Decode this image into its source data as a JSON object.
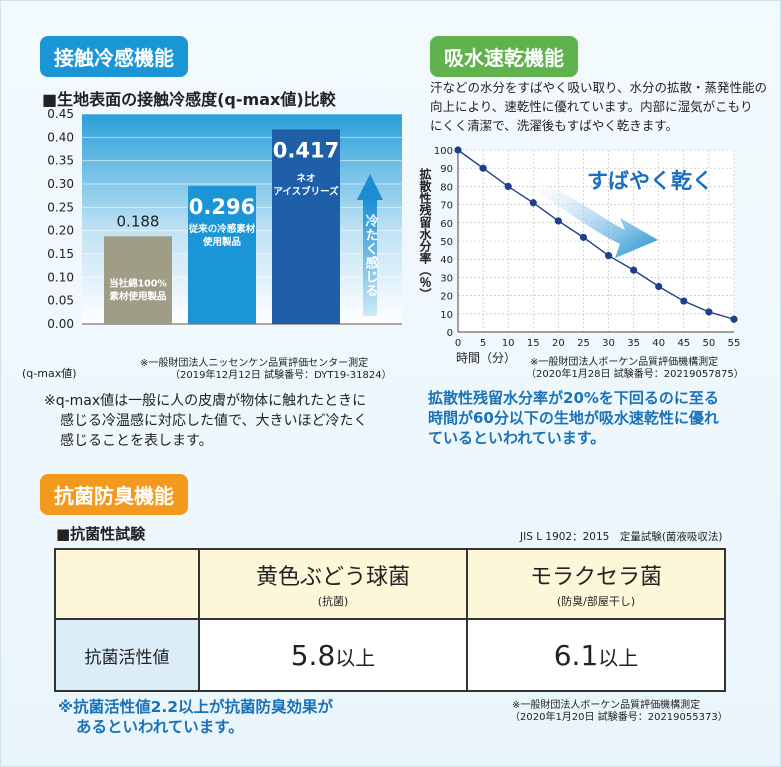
{
  "cooling": {
    "section_title": "接触冷感機能",
    "heading": "■生地表面の接触冷感度(q-max値)比較",
    "y_unit_label": "(q-max値)",
    "source_line1": "※一般財団法人ニッセンケン品質評価センター測定",
    "source_line2": "（2019年12月12日 試験番号：DYT19-31824）",
    "note_line1": "※q-max値は一般に人の皮膚が物体に触れたときに",
    "note_line2": "感じる冷温感に対応した値で、大きいほど冷たく",
    "note_line3": "感じることを表します。",
    "arrow_text": "冷たく感じる"
  },
  "drying": {
    "section_title": "吸水速乾機能",
    "desc_line1": "汗などの水分をすばやく吸い取り、水分の拡散・蒸発性能の",
    "desc_line2": "向上により、速乾性に優れています。内部に湿気がこもり",
    "desc_line3": "にくく清潔で、洗濯後もすばやく乾きます。",
    "arrow_text": "すばやく乾く",
    "ylabel": "拡散性残留水分率（％）",
    "xlabel": "時間（分）",
    "source_line1": "※一般財団法人ボーケン品質評価機構測定",
    "source_line2": "（2020年1月28日 試験番号：20219057875）",
    "note_line1": "拡散性残留水分率が20%を下回るのに至る",
    "note_line2": "時間が60分以下の生地が吸水速乾性に優れ",
    "note_line3": "ているといわれています。"
  },
  "antibac": {
    "section_title": "抗菌防臭機能",
    "heading": "■抗菌性試験",
    "standard": "JIS L 1902：2015　定量試験(菌液吸収法)",
    "col1_name": "黄色ぶどう球菌",
    "col1_sub": "(抗菌)",
    "col2_name": "モラクセラ菌",
    "col2_sub": "(防臭/部屋干し)",
    "row_label": "抗菌活性値",
    "col1_value": "5.8",
    "col2_value": "6.1",
    "value_suffix": "以上",
    "note_line1": "※抗菌活性値2.2以上が抗菌防臭効果が",
    "note_line2": "あるといわれています。",
    "source_line1": "※一般財団法人ボーケン品質評価機構測定",
    "source_line2": "（2020年1月20日 試験番号：20219055373）"
  },
  "colors": {
    "blue": "#1a96d6",
    "green": "#5fb24c",
    "orange": "#f39a1e",
    "navy": "#1a4f9a",
    "olive": "#a09d86",
    "darkblue": "#1f5fa8"
  },
  "chart_data": [
    {
      "type": "bar",
      "title": "■生地表面の接触冷感度(q-max値)比較",
      "ylabel": "(q-max値)",
      "ylim": [
        0,
        0.45
      ],
      "yticks": [
        "0.00",
        "0.05",
        "0.10",
        "0.15",
        "0.20",
        "0.25",
        "0.30",
        "0.35",
        "0.40",
        "0.45"
      ],
      "categories": [
        "当社綿100%素材使用製品",
        "従来の冷感素材使用製品",
        "ネオアイスブリーズ"
      ],
      "values": [
        0.188,
        0.296,
        0.417
      ],
      "value_labels": [
        "0.188",
        "0.296",
        "0.417"
      ],
      "bar_label_lines": [
        [
          "当社綿100%",
          "素材使用製品"
        ],
        [
          "従来の冷感素材",
          "使用製品"
        ],
        [
          "ネオ",
          "アイスブリーズ"
        ]
      ],
      "grid": true
    },
    {
      "type": "line",
      "xlabel": "時間（分）",
      "ylabel": "拡散性残留水分率（％）",
      "xlim": [
        0,
        55
      ],
      "ylim": [
        0,
        100
      ],
      "xticks": [
        "0",
        "5",
        "10",
        "15",
        "20",
        "25",
        "30",
        "35",
        "40",
        "45",
        "50",
        "55"
      ],
      "yticks": [
        "0",
        "10",
        "20",
        "30",
        "40",
        "50",
        "60",
        "70",
        "80",
        "90",
        "100"
      ],
      "x": [
        0,
        5,
        10,
        15,
        20,
        25,
        30,
        35,
        40,
        45,
        50,
        55
      ],
      "y": [
        100,
        90,
        80,
        71,
        61,
        52,
        42,
        34,
        25,
        17,
        11,
        7
      ],
      "grid": true
    }
  ]
}
